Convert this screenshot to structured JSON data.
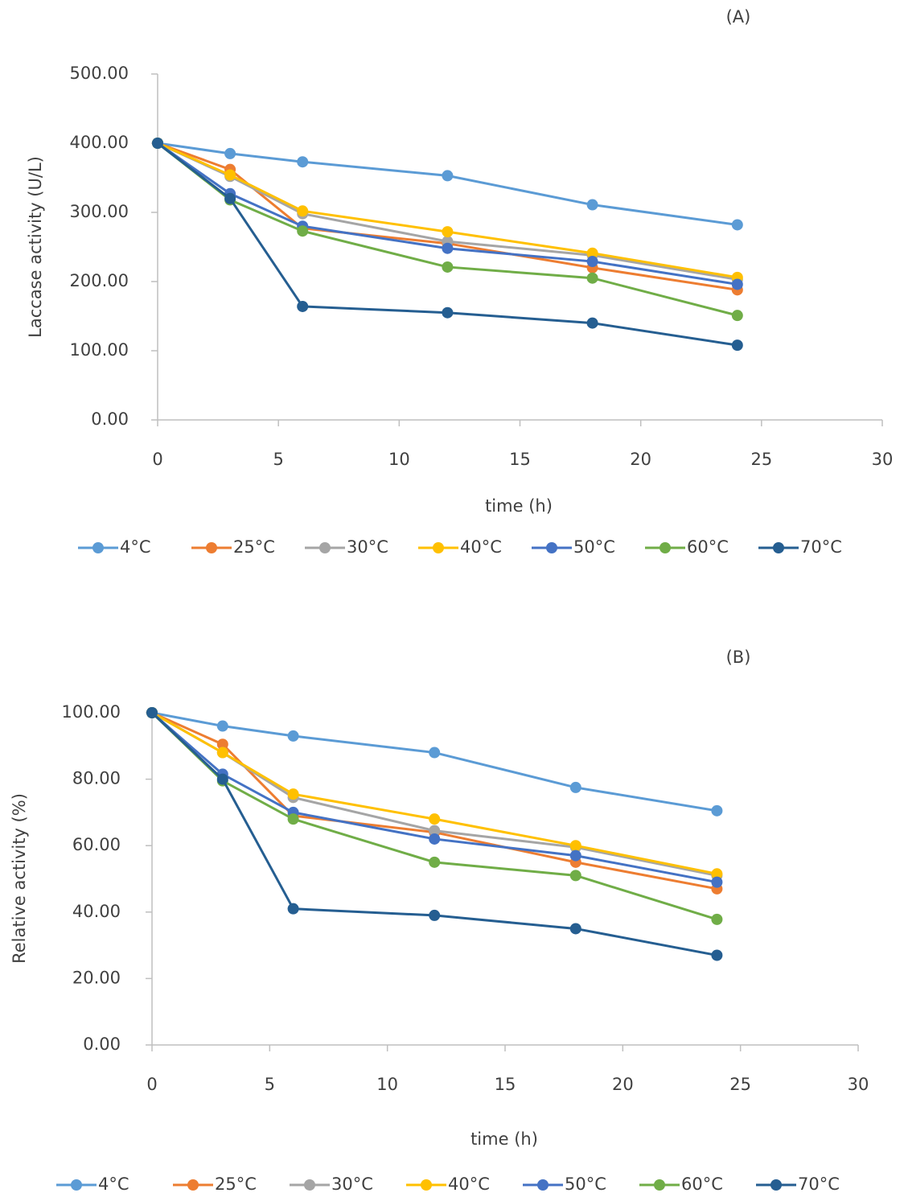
{
  "chart_data": [
    {
      "type": "line",
      "panel_label": "(A)",
      "x_label": "time (h)",
      "y_label": "Laccase activity (U/L)",
      "x": [
        0,
        3,
        6,
        12,
        18,
        24
      ],
      "xlim": [
        0,
        30
      ],
      "xticks": [
        0,
        5,
        10,
        15,
        20,
        25,
        30
      ],
      "ylim": [
        0,
        500
      ],
      "yticks": [
        {
          "value": 0,
          "label": "0.00"
        },
        {
          "value": 100,
          "label": "100.00"
        },
        {
          "value": 200,
          "label": "200.00"
        },
        {
          "value": 300,
          "label": "300.00"
        },
        {
          "value": 400,
          "label": "400.00"
        },
        {
          "value": 500,
          "label": "500.00"
        }
      ],
      "legend": "bottom",
      "series": [
        {
          "name": "4°C",
          "color": "#5b9bd5",
          "values": [
            400,
            385,
            373,
            353,
            311,
            282
          ]
        },
        {
          "name": "25°C",
          "color": "#ed7d31",
          "values": [
            400,
            362,
            277,
            255,
            220,
            188
          ]
        },
        {
          "name": "30°C",
          "color": "#a5a5a5",
          "values": [
            400,
            352,
            298,
            258,
            238,
            203
          ]
        },
        {
          "name": "40°C",
          "color": "#ffc000",
          "values": [
            400,
            354,
            302,
            272,
            241,
            206
          ]
        },
        {
          "name": "50°C",
          "color": "#4472c4",
          "values": [
            400,
            327,
            280,
            248,
            229,
            196
          ]
        },
        {
          "name": "60°C",
          "color": "#70ad47",
          "values": [
            400,
            318,
            273,
            221,
            205,
            151
          ]
        },
        {
          "name": "70°C",
          "color": "#255e91",
          "values": [
            400,
            320,
            164,
            155,
            140,
            108
          ]
        }
      ]
    },
    {
      "type": "line",
      "panel_label": "(B)",
      "x_label": "time (h)",
      "y_label": "Relative activity (%)",
      "x": [
        0,
        3,
        6,
        12,
        18,
        24
      ],
      "xlim": [
        0,
        30
      ],
      "xticks": [
        0,
        5,
        10,
        15,
        20,
        25,
        30
      ],
      "ylim": [
        0,
        100
      ],
      "yticks": [
        {
          "value": 0,
          "label": "0.00"
        },
        {
          "value": 20,
          "label": "20.00"
        },
        {
          "value": 40,
          "label": "40.00"
        },
        {
          "value": 60,
          "label": "60.00"
        },
        {
          "value": 80,
          "label": "80.00"
        },
        {
          "value": 100,
          "label": "100.00"
        }
      ],
      "legend": "bottom",
      "series": [
        {
          "name": "4°C",
          "color": "#5b9bd5",
          "values": [
            100,
            96,
            93,
            88,
            77.5,
            70.5
          ]
        },
        {
          "name": "25°C",
          "color": "#ed7d31",
          "values": [
            100,
            90.5,
            69,
            64,
            55,
            47
          ]
        },
        {
          "name": "30°C",
          "color": "#a5a5a5",
          "values": [
            100,
            88,
            74.5,
            64.5,
            59.5,
            51
          ]
        },
        {
          "name": "40°C",
          "color": "#ffc000",
          "values": [
            100,
            88,
            75.5,
            68,
            60,
            51.5
          ]
        },
        {
          "name": "50°C",
          "color": "#4472c4",
          "values": [
            100,
            81.5,
            70,
            62,
            57,
            49
          ]
        },
        {
          "name": "60°C",
          "color": "#70ad47",
          "values": [
            100,
            79.5,
            68,
            55,
            51,
            37.8
          ]
        },
        {
          "name": "70°C",
          "color": "#255e91",
          "values": [
            100,
            80,
            41,
            39,
            35,
            27
          ]
        }
      ]
    }
  ]
}
